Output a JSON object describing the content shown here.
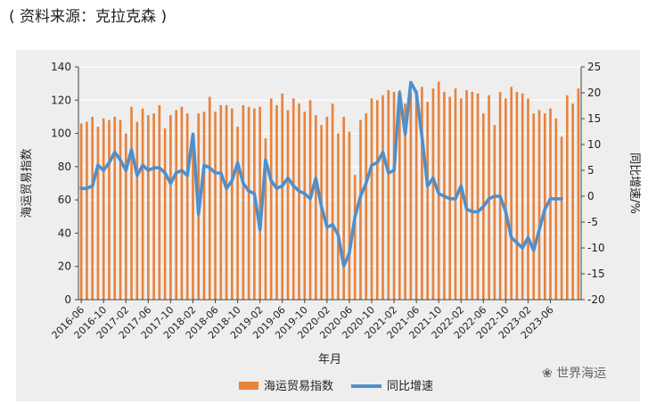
{
  "source_note": "( 资料来源：克拉克森 )",
  "watermark": "世界海运",
  "colors": {
    "bar": "#e9823a",
    "line": "#4f8fcb",
    "axis": "#444444",
    "grid": "#ffffff",
    "panel": "#eeeeee"
  },
  "chart_data": {
    "type": "bar+line",
    "xlabel": "年月",
    "ylabel_left": "海运贸易指数",
    "ylabel_right": "同比增速/%",
    "ylim_left": [
      0,
      140
    ],
    "ylim_right": [
      -20,
      25
    ],
    "yticks_left": [
      0,
      20,
      40,
      60,
      80,
      100,
      120,
      140
    ],
    "yticks_right": [
      -20,
      -15,
      -10,
      -5,
      0,
      5,
      10,
      15,
      20,
      25
    ],
    "xtick_labels": [
      "2016-06",
      "2016-10",
      "2017-02",
      "2017-06",
      "2017-10",
      "2018-02",
      "2018-06",
      "2018-10",
      "2019-02",
      "2019-06",
      "2019-10",
      "2020-02",
      "2020-06",
      "2020-10",
      "2021-02",
      "2021-06",
      "2021-10",
      "2022-02",
      "2022-06",
      "2022-10",
      "2023-02",
      "2023-06"
    ],
    "legend": [
      "海运贸易指数",
      "同比增速"
    ],
    "legend_position": "bottom",
    "grid": true,
    "series": [
      {
        "name": "海运贸易指数",
        "type": "bar",
        "axis": "left",
        "values": [
          106,
          107,
          110,
          104,
          109,
          108,
          110,
          108,
          100,
          116,
          107,
          115,
          111,
          112,
          117,
          103,
          111,
          114,
          116,
          112,
          100,
          112,
          113,
          122,
          113,
          117,
          117,
          115,
          104,
          117,
          116,
          115,
          116,
          97,
          121,
          117,
          124,
          114,
          121,
          118,
          113,
          120,
          111,
          105,
          110,
          118,
          100,
          110,
          101,
          75,
          108,
          112,
          121,
          120,
          123,
          126,
          125,
          126,
          118,
          125,
          126,
          128,
          119,
          127,
          131,
          125,
          122,
          127,
          121,
          126,
          125,
          124,
          112,
          123,
          105,
          125,
          121,
          128,
          125,
          124,
          121,
          112,
          114,
          112,
          115,
          109,
          98,
          123,
          118,
          127
        ]
      },
      {
        "name": "同比增速",
        "type": "line",
        "axis": "right",
        "values": [
          1.5,
          1.5,
          2.0,
          6.0,
          5.0,
          6.5,
          8.5,
          7.0,
          5.0,
          9.0,
          4.0,
          6.0,
          5.0,
          5.5,
          5.5,
          4.5,
          2.5,
          4.5,
          5.0,
          4.0,
          12.0,
          -3.5,
          6.0,
          5.5,
          4.5,
          4.5,
          1.5,
          3.0,
          6.5,
          2.5,
          1.0,
          0.5,
          -6.5,
          7.0,
          3.0,
          1.5,
          2.0,
          3.5,
          2.0,
          1.0,
          0.5,
          -0.5,
          3.5,
          -2.0,
          -6.0,
          -5.5,
          -7.5,
          -13.5,
          -11.0,
          -4.0,
          0.0,
          2.5,
          6.0,
          6.5,
          8.5,
          4.5,
          5.0,
          20.0,
          12.0,
          22.0,
          20.0,
          11.5,
          2.0,
          3.5,
          0.5,
          0.0,
          -0.5,
          -0.5,
          2.0,
          -2.5,
          -3.0,
          -3.0,
          -2.0,
          -0.5,
          0.0,
          0.0,
          -3.0,
          -8.0,
          -9.0,
          -10.0,
          -8.0,
          -10.5,
          -6.5,
          -2.5,
          -0.5,
          -0.5,
          -0.5
        ]
      }
    ]
  }
}
